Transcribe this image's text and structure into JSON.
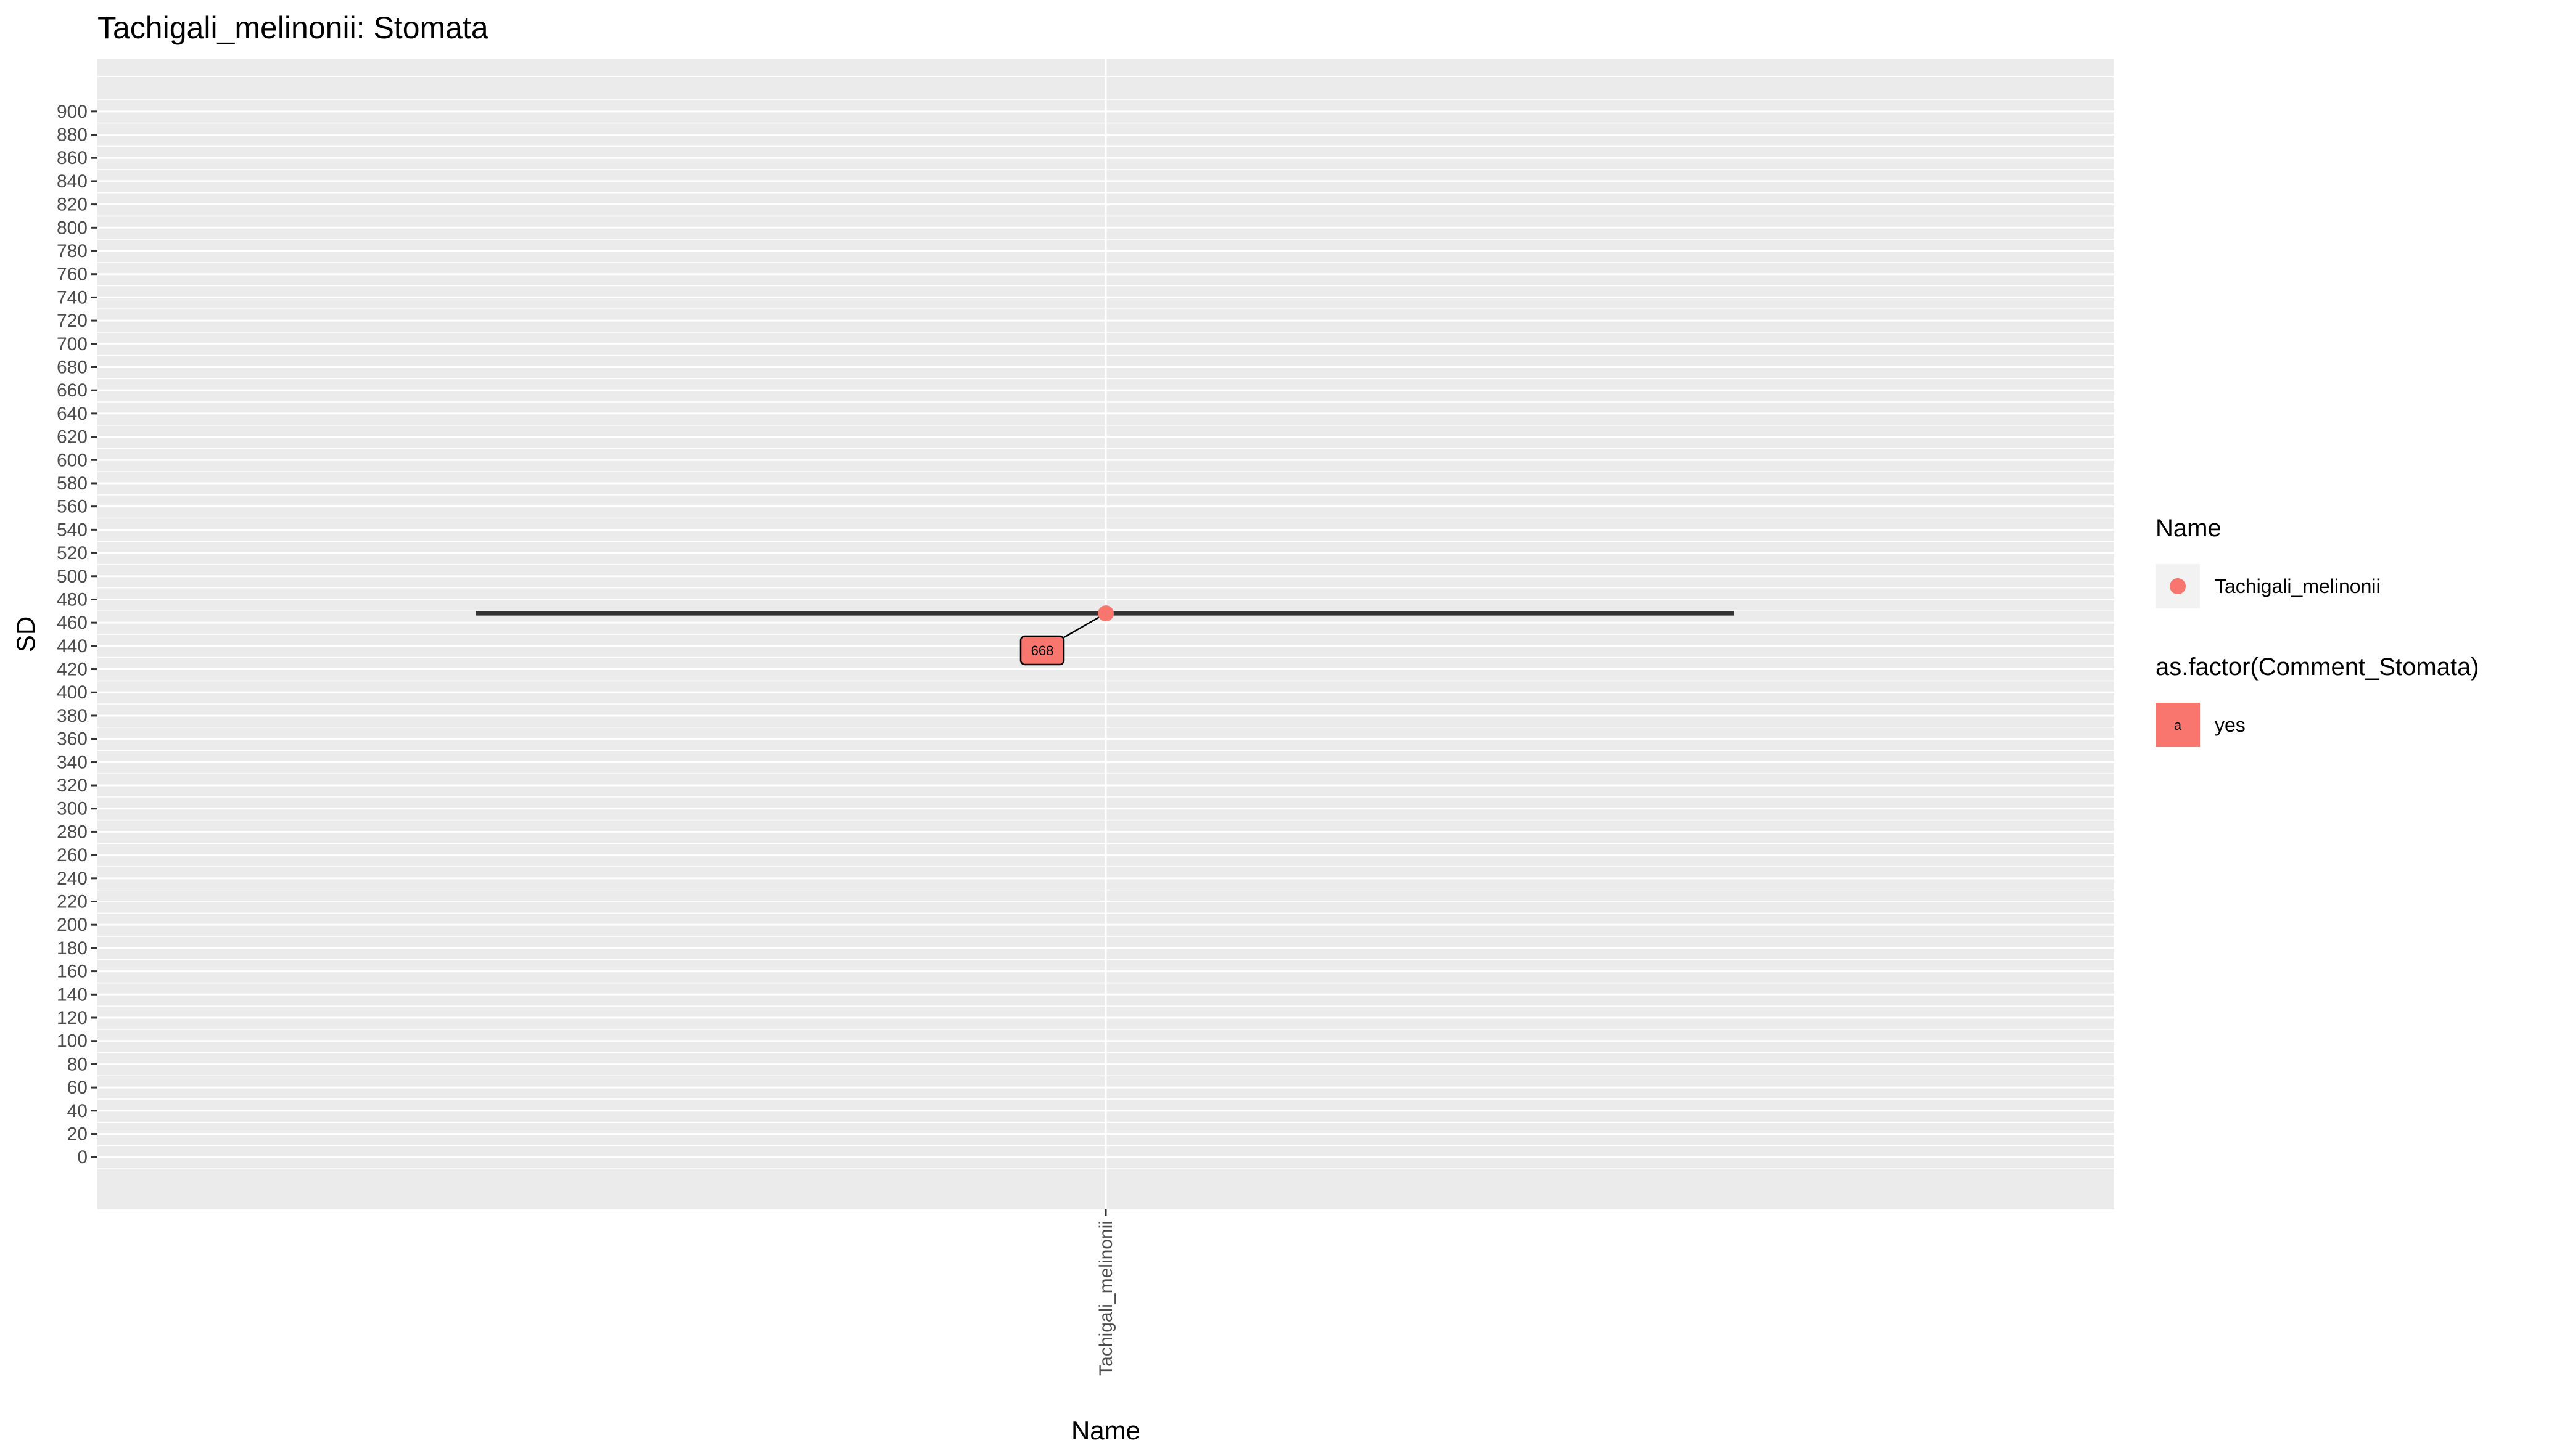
{
  "chart_data": {
    "type": "scatter",
    "title": "Tachigali_melinonii: Stomata",
    "xlabel": "Name",
    "ylabel": "SD",
    "categories": [
      "Tachigali_melinonii"
    ],
    "y_ticks": [
      0,
      20,
      40,
      60,
      80,
      100,
      120,
      140,
      160,
      180,
      200,
      220,
      240,
      260,
      280,
      300,
      320,
      340,
      360,
      380,
      400,
      420,
      440,
      460,
      480,
      500,
      520,
      540,
      560,
      580,
      600,
      620,
      640,
      660,
      680,
      700,
      720,
      740,
      760,
      780,
      800,
      820,
      840,
      860,
      880,
      900
    ],
    "ylim": [
      -45,
      945
    ],
    "grid": true,
    "legend_position": "right",
    "series": [
      {
        "category": "Tachigali_melinonii",
        "points": [
          {
            "x": "Tachigali_melinonii",
            "y": 468,
            "label": "668",
            "comment": "yes"
          }
        ]
      }
    ],
    "reference_line": {
      "y": 468
    },
    "legends": [
      {
        "title": "Name",
        "entries": [
          {
            "label": "Tachigali_melinonii",
            "shape": "point",
            "color": "#F8766D"
          }
        ]
      },
      {
        "title": "as.factor(Comment_Stomata)",
        "entries": [
          {
            "label": "yes",
            "shape": "label-box",
            "key_text": "a",
            "color": "#F8766D"
          }
        ]
      }
    ],
    "colors": {
      "panel_background": "#EBEBEB",
      "grid": "#FFFFFF",
      "point": "#F8766D",
      "line": "#333333",
      "legend_key_background": "#F2F2F2"
    }
  }
}
